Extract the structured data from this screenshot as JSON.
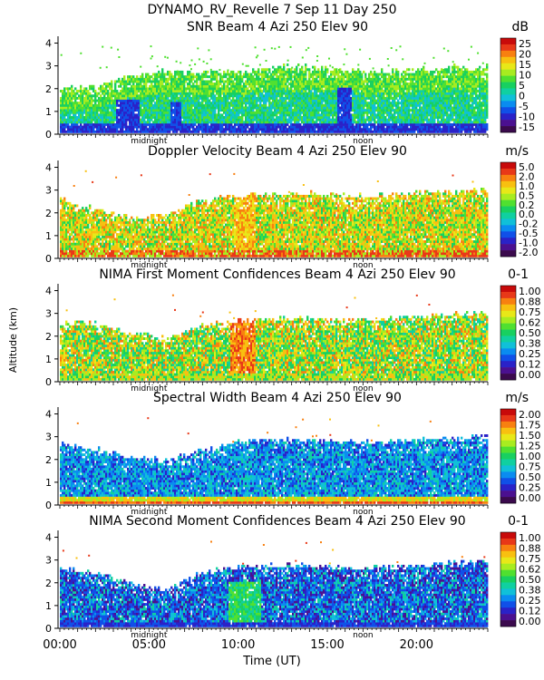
{
  "header": {
    "line1": "DYNAMO_RV_Revelle    7 Sep 11 Day 250"
  },
  "shared_axes": {
    "ylabel": "Altitude (km)",
    "xlabel": "Time (UT)",
    "x_ticks": [
      "00:00",
      "05:00",
      "10:00",
      "15:00",
      "20:00"
    ],
    "y_ticks": [
      "0",
      "1",
      "2",
      "3",
      "4"
    ],
    "midnight_label": "midnight",
    "noon_label": "noon"
  },
  "palette": [
    "#3b0a4d",
    "#4b1090",
    "#2a22c8",
    "#1050e8",
    "#0a8cf0",
    "#10c0d8",
    "#10d0a0",
    "#18d060",
    "#50e030",
    "#a8ec20",
    "#e8e818",
    "#f8c010",
    "#f88010",
    "#e83818",
    "#c80a0a"
  ],
  "chart_data": [
    {
      "type": "heatmap",
      "title": "SNR Beam 4 Azi 250 Elev 90",
      "unit": "dB",
      "xlabel": "Time (UT)",
      "ylabel": "Altitude (km)",
      "xlim": [
        0,
        24
      ],
      "ylim": [
        0,
        4.3
      ],
      "colorbar_ticks": [
        "25",
        "20",
        "15",
        "10",
        "5",
        "0",
        "-5",
        "-10",
        "-15"
      ],
      "echo_top_km": [
        [
          0,
          1.9
        ],
        [
          2,
          2.1
        ],
        [
          4,
          2.5
        ],
        [
          6,
          2.7
        ],
        [
          8,
          2.6
        ],
        [
          10,
          2.7
        ],
        [
          12,
          2.9
        ],
        [
          14,
          2.9
        ],
        [
          16,
          2.8
        ],
        [
          18,
          2.7
        ],
        [
          20,
          2.8
        ],
        [
          22,
          2.9
        ],
        [
          24,
          2.9
        ]
      ]
    },
    {
      "type": "heatmap",
      "title": "Doppler Velocity Beam 4 Azi 250 Elev 90",
      "unit": "m/s",
      "xlabel": "Time (UT)",
      "ylabel": "Altitude (km)",
      "xlim": [
        0,
        24
      ],
      "ylim": [
        0,
        4.3
      ],
      "colorbar_ticks": [
        "5.0",
        "2.0",
        "1.0",
        "0.5",
        "0.2",
        "0.0",
        "-0.2",
        "-0.5",
        "-1.0",
        "-2.0"
      ],
      "echo_top_km": [
        [
          0,
          2.6
        ],
        [
          2,
          2.1
        ],
        [
          4,
          1.7
        ],
        [
          6,
          1.9
        ],
        [
          8,
          2.5
        ],
        [
          10,
          2.7
        ],
        [
          12,
          2.8
        ],
        [
          14,
          2.8
        ],
        [
          16,
          2.7
        ],
        [
          18,
          2.7
        ],
        [
          20,
          2.8
        ],
        [
          22,
          2.9
        ],
        [
          24,
          3.0
        ]
      ]
    },
    {
      "type": "heatmap",
      "title": "NIMA First Moment Confidences Beam 4 Azi 250 Elev 90",
      "unit": "0-1",
      "xlabel": "Time (UT)",
      "ylabel": "Altitude (km)",
      "xlim": [
        0,
        24
      ],
      "ylim": [
        0,
        4.3
      ],
      "colorbar_ticks": [
        "1.00",
        "0.88",
        "0.75",
        "0.62",
        "0.50",
        "0.38",
        "0.25",
        "0.12",
        "0.00"
      ],
      "echo_top_km": [
        [
          0,
          2.5
        ],
        [
          2,
          2.5
        ],
        [
          4,
          2.1
        ],
        [
          6,
          1.8
        ],
        [
          8,
          2.4
        ],
        [
          10,
          2.6
        ],
        [
          12,
          2.7
        ],
        [
          14,
          2.7
        ],
        [
          16,
          2.6
        ],
        [
          18,
          2.7
        ],
        [
          20,
          2.8
        ],
        [
          22,
          2.9
        ],
        [
          24,
          3.0
        ]
      ]
    },
    {
      "type": "heatmap",
      "title": "Spectral Width Beam 4 Azi 250 Elev 90",
      "unit": "m/s",
      "xlabel": "Time (UT)",
      "ylabel": "Altitude (km)",
      "xlim": [
        0,
        24
      ],
      "ylim": [
        0,
        4.3
      ],
      "colorbar_ticks": [
        "2.00",
        "1.75",
        "1.50",
        "1.25",
        "1.00",
        "0.75",
        "0.50",
        "0.25",
        "0.00"
      ],
      "echo_top_km": [
        [
          0,
          2.6
        ],
        [
          2,
          2.4
        ],
        [
          4,
          2.0
        ],
        [
          6,
          1.9
        ],
        [
          8,
          2.4
        ],
        [
          10,
          2.7
        ],
        [
          12,
          2.8
        ],
        [
          14,
          2.8
        ],
        [
          16,
          2.7
        ],
        [
          18,
          2.7
        ],
        [
          20,
          2.8
        ],
        [
          22,
          2.9
        ],
        [
          24,
          3.0
        ]
      ]
    },
    {
      "type": "heatmap",
      "title": "NIMA Second Moment Confidences Beam 4 Azi 250 Elev 90",
      "unit": "0-1",
      "xlabel": "Time (UT)",
      "ylabel": "Altitude (km)",
      "xlim": [
        0,
        24
      ],
      "ylim": [
        0,
        4.3
      ],
      "colorbar_ticks": [
        "1.00",
        "0.88",
        "0.75",
        "0.62",
        "0.50",
        "0.38",
        "0.25",
        "0.12",
        "0.00"
      ],
      "echo_top_km": [
        [
          0,
          2.6
        ],
        [
          2,
          2.4
        ],
        [
          4,
          1.9
        ],
        [
          6,
          1.6
        ],
        [
          8,
          2.4
        ],
        [
          10,
          2.6
        ],
        [
          12,
          2.7
        ],
        [
          14,
          2.7
        ],
        [
          16,
          2.6
        ],
        [
          18,
          2.6
        ],
        [
          20,
          2.7
        ],
        [
          22,
          2.8
        ],
        [
          24,
          2.9
        ]
      ]
    }
  ]
}
